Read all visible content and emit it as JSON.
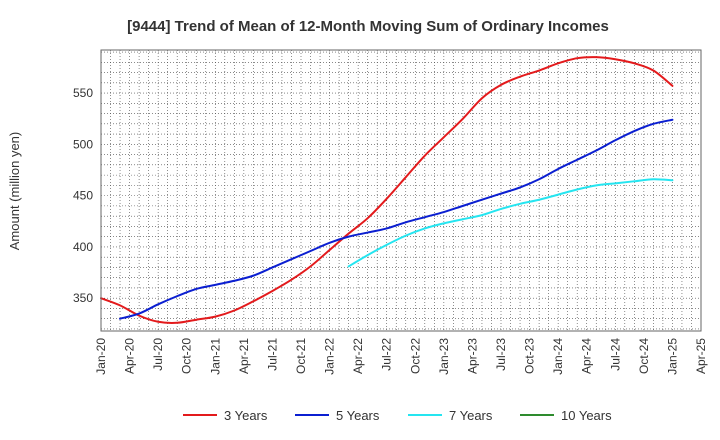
{
  "chart_data": {
    "type": "line",
    "title": "[9444]  Trend of Mean of 12-Month Moving Sum of Ordinary Incomes",
    "xlabel": "",
    "ylabel": "Amount (million yen)",
    "x_ticks": [
      "Jan-20",
      "Apr-20",
      "Jul-20",
      "Oct-20",
      "Jan-21",
      "Apr-21",
      "Jul-21",
      "Oct-21",
      "Jan-22",
      "Apr-22",
      "Jul-22",
      "Oct-22",
      "Jan-23",
      "Apr-23",
      "Jul-23",
      "Oct-23",
      "Jan-24",
      "Apr-24",
      "Jul-24",
      "Oct-24",
      "Jan-25",
      "Apr-25"
    ],
    "y_ticks": [
      350,
      400,
      450,
      500,
      550
    ],
    "ylim": [
      318,
      592
    ],
    "x_range_months": [
      0,
      63
    ],
    "grid": true,
    "legend_position": "bottom",
    "series": [
      {
        "name": "3 Years",
        "color": "#e31a1c",
        "points": [
          [
            0,
            350
          ],
          [
            2,
            343
          ],
          [
            4,
            333
          ],
          [
            6,
            327
          ],
          [
            8,
            326
          ],
          [
            10,
            329
          ],
          [
            12,
            332
          ],
          [
            14,
            338
          ],
          [
            16,
            347
          ],
          [
            18,
            357
          ],
          [
            20,
            368
          ],
          [
            22,
            381
          ],
          [
            24,
            397
          ],
          [
            26,
            413
          ],
          [
            28,
            428
          ],
          [
            30,
            447
          ],
          [
            32,
            468
          ],
          [
            34,
            489
          ],
          [
            36,
            507
          ],
          [
            38,
            525
          ],
          [
            40,
            545
          ],
          [
            42,
            558
          ],
          [
            44,
            566
          ],
          [
            46,
            572
          ],
          [
            48,
            579
          ],
          [
            50,
            584
          ],
          [
            52,
            585
          ],
          [
            54,
            583
          ],
          [
            56,
            579
          ],
          [
            58,
            572
          ],
          [
            60,
            557
          ]
        ]
      },
      {
        "name": "5 Years",
        "color": "#0b1fd1",
        "points": [
          [
            2,
            330
          ],
          [
            4,
            335
          ],
          [
            6,
            344
          ],
          [
            8,
            352
          ],
          [
            10,
            359
          ],
          [
            12,
            363
          ],
          [
            14,
            367
          ],
          [
            16,
            372
          ],
          [
            18,
            380
          ],
          [
            20,
            388
          ],
          [
            22,
            396
          ],
          [
            24,
            404
          ],
          [
            26,
            410
          ],
          [
            28,
            414
          ],
          [
            30,
            418
          ],
          [
            32,
            424
          ],
          [
            34,
            429
          ],
          [
            36,
            434
          ],
          [
            38,
            440
          ],
          [
            40,
            446
          ],
          [
            42,
            452
          ],
          [
            44,
            458
          ],
          [
            46,
            466
          ],
          [
            48,
            476
          ],
          [
            50,
            485
          ],
          [
            52,
            494
          ],
          [
            54,
            504
          ],
          [
            56,
            513
          ],
          [
            58,
            520
          ],
          [
            60,
            524
          ]
        ]
      },
      {
        "name": "7 Years",
        "color": "#25e5f0",
        "points": [
          [
            26,
            381
          ],
          [
            28,
            392
          ],
          [
            30,
            402
          ],
          [
            32,
            411
          ],
          [
            34,
            418
          ],
          [
            36,
            423
          ],
          [
            38,
            427
          ],
          [
            40,
            431
          ],
          [
            42,
            437
          ],
          [
            44,
            442
          ],
          [
            46,
            446
          ],
          [
            48,
            451
          ],
          [
            50,
            456
          ],
          [
            52,
            460
          ],
          [
            54,
            462
          ],
          [
            56,
            464
          ],
          [
            58,
            466
          ],
          [
            60,
            465
          ]
        ]
      },
      {
        "name": "10 Years",
        "color": "#2e8b2e",
        "points": []
      }
    ]
  }
}
